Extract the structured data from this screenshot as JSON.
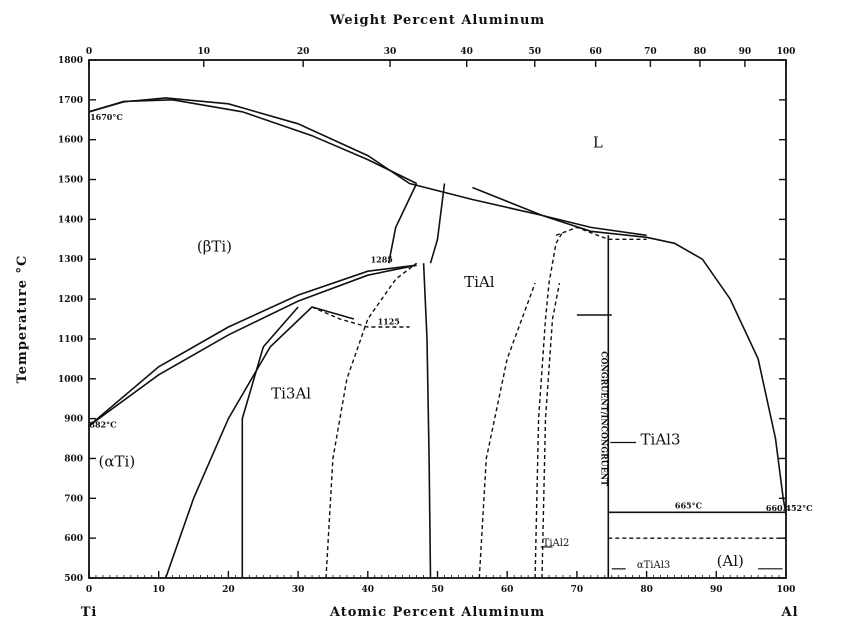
{
  "chart_data": {
    "type": "phase_diagram",
    "top_axis": {
      "title": "Weight Percent Aluminum",
      "ticks": [
        0,
        10,
        20,
        30,
        40,
        50,
        60,
        70,
        80,
        90,
        100
      ]
    },
    "bottom_axis": {
      "title": "Atomic Percent Aluminum",
      "range": [
        0,
        100
      ],
      "ticks": [
        0,
        10,
        20,
        30,
        40,
        50,
        60,
        70,
        80,
        90,
        100
      ],
      "left_end_label": "Ti",
      "right_end_label": "Al"
    },
    "y_axis": {
      "title": "Temperature °C",
      "range": [
        500,
        1800
      ],
      "ticks": [
        500,
        600,
        700,
        800,
        900,
        1000,
        1100,
        1200,
        1300,
        1400,
        1500,
        1600,
        1700,
        1800
      ]
    },
    "phase_labels": [
      {
        "text": "L",
        "x": 73,
        "y": 1580
      },
      {
        "text": "(βTi)",
        "x": 18,
        "y": 1320
      },
      {
        "text": "TiAl",
        "x": 56,
        "y": 1230
      },
      {
        "text": "Ti3Al",
        "x": 29,
        "y": 950
      },
      {
        "text": "(αTi)",
        "x": 4,
        "y": 780
      },
      {
        "text": "TiAl3",
        "x": 82,
        "y": 835
      },
      {
        "text": "(Al)",
        "x": 92,
        "y": 530
      },
      {
        "text": "TiAl2",
        "x": 67,
        "y": 580
      },
      {
        "text": "αTiAl3",
        "x": 81,
        "y": 525
      }
    ],
    "annotations": [
      {
        "text": "1670°C",
        "x": 2.5,
        "y": 1650
      },
      {
        "text": "882°C",
        "x": 2,
        "y": 878
      },
      {
        "text": "665°C",
        "x": 86,
        "y": 675
      },
      {
        "text": "660.452°C",
        "x": 103.8,
        "y": 668
      },
      {
        "text": "1285",
        "x": 42,
        "y": 1292
      },
      {
        "text": "1125",
        "x": 43,
        "y": 1136
      },
      {
        "text": "CONGRUENT/INCONGRUENT",
        "x": 73.5,
        "y": 900
      }
    ],
    "boundaries_solid": [
      {
        "name": "beta-liquidus",
        "points": [
          [
            0,
            1670
          ],
          [
            5,
            1695
          ],
          [
            11,
            1705
          ],
          [
            20,
            1690
          ],
          [
            30,
            1640
          ],
          [
            40,
            1560
          ],
          [
            46,
            1490
          ],
          [
            55,
            1450
          ],
          [
            65,
            1410
          ],
          [
            72,
            1380
          ],
          [
            80,
            1360
          ]
        ]
      },
      {
        "name": "beta-solidus",
        "points": [
          [
            0,
            1670
          ],
          [
            5,
            1696
          ],
          [
            12,
            1700
          ],
          [
            22,
            1670
          ],
          [
            32,
            1610
          ],
          [
            40,
            1550
          ],
          [
            47,
            1490
          ]
        ]
      },
      {
        "name": "al-rich-liquidus",
        "points": [
          [
            55,
            1480
          ],
          [
            65,
            1410
          ],
          [
            72,
            1370
          ],
          [
            80,
            1355
          ],
          [
            84,
            1340
          ],
          [
            88,
            1300
          ],
          [
            92,
            1200
          ],
          [
            96,
            1050
          ],
          [
            98.5,
            850
          ],
          [
            99.6,
            700
          ],
          [
            100,
            660
          ]
        ]
      },
      {
        "name": "alpha-transus-upper",
        "points": [
          [
            0,
            882
          ],
          [
            10,
            1010
          ],
          [
            20,
            1110
          ],
          [
            30,
            1195
          ],
          [
            40,
            1260
          ],
          [
            47,
            1285
          ]
        ]
      },
      {
        "name": "alpha-transus-lower",
        "points": [
          [
            0,
            882
          ],
          [
            10,
            1030
          ],
          [
            20,
            1130
          ],
          [
            30,
            1210
          ],
          [
            40,
            1270
          ],
          [
            47,
            1285
          ]
        ]
      },
      {
        "name": "alpha-ti3al-boundary-left",
        "points": [
          [
            11,
            500
          ],
          [
            15,
            700
          ],
          [
            20,
            900
          ],
          [
            26,
            1080
          ],
          [
            32,
            1180
          ],
          [
            38,
            1150
          ]
        ]
      },
      {
        "name": "ti3al-boundary-right",
        "points": [
          [
            22,
            500
          ],
          [
            22,
            900
          ],
          [
            25,
            1080
          ],
          [
            30,
            1180
          ]
        ]
      },
      {
        "name": "tial-left",
        "points": [
          [
            43,
            1290
          ],
          [
            44,
            1380
          ],
          [
            47,
            1490
          ]
        ]
      },
      {
        "name": "tial-left-lower",
        "points": [
          [
            48,
            1290
          ],
          [
            48.5,
            1100
          ],
          [
            48.8,
            800
          ],
          [
            49,
            500
          ]
        ]
      },
      {
        "name": "tial-right",
        "points": [
          [
            51,
            1490
          ],
          [
            50,
            1350
          ],
          [
            49,
            1290
          ]
        ]
      },
      {
        "name": "tial3-line",
        "points": [
          [
            74.5,
            1360
          ],
          [
            74.5,
            500
          ]
        ]
      },
      {
        "name": "peritectic-665",
        "points": [
          [
            74.5,
            665
          ],
          [
            100,
            665
          ]
        ]
      },
      {
        "name": "tial2-right",
        "points": [
          [
            70,
            1160
          ],
          [
            75,
            1160
          ]
        ]
      }
    ],
    "boundaries_dashed": [
      {
        "name": "ti3al-dash-right",
        "points": [
          [
            34,
            500
          ],
          [
            35,
            800
          ],
          [
            37,
            1000
          ],
          [
            40,
            1150
          ],
          [
            44,
            1250
          ],
          [
            47,
            1290
          ]
        ]
      },
      {
        "name": "ti3al-dash-top",
        "points": [
          [
            32,
            1180
          ],
          [
            36,
            1150
          ],
          [
            40,
            1130
          ],
          [
            46,
            1130
          ]
        ]
      },
      {
        "name": "tial-dash",
        "points": [
          [
            56,
            500
          ],
          [
            57,
            800
          ],
          [
            60,
            1050
          ],
          [
            64,
            1240
          ]
        ]
      },
      {
        "name": "tial2-dash-left",
        "points": [
          [
            64,
            500
          ],
          [
            64.5,
            900
          ],
          [
            65.5,
            1150
          ],
          [
            66,
            1240
          ],
          [
            67,
            1340
          ],
          [
            68,
            1370
          ]
        ]
      },
      {
        "name": "tial2-dash-right",
        "points": [
          [
            65,
            500
          ],
          [
            65.5,
            900
          ],
          [
            66.5,
            1150
          ],
          [
            67.5,
            1240
          ]
        ]
      },
      {
        "name": "al-rich-dash-top",
        "points": [
          [
            67,
            1360
          ],
          [
            70,
            1380
          ],
          [
            74.5,
            1350
          ],
          [
            80,
            1350
          ]
        ]
      },
      {
        "name": "alpha-tial3",
        "points": [
          [
            74.5,
            600
          ],
          [
            100,
            600
          ]
        ]
      }
    ]
  }
}
